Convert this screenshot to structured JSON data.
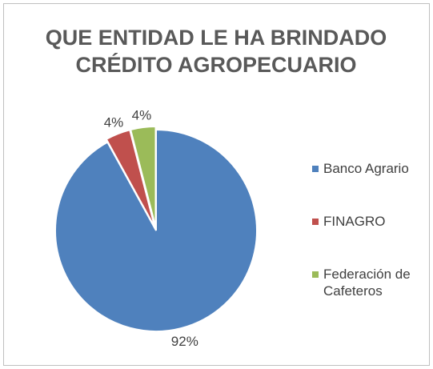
{
  "chart_data": {
    "type": "pie",
    "title": "QUE ENTIDAD LE HA BRINDADO CRÉDITO AGROPECUARIO",
    "categories": [
      "Banco Agrario",
      "FINAGRO",
      "Federación de Cafeteros"
    ],
    "values": [
      92,
      4,
      4
    ],
    "value_labels": [
      "92%",
      "4%",
      "4%"
    ],
    "colors": [
      "#4f81bd",
      "#c0504d",
      "#9bbb59"
    ],
    "legend": "right"
  }
}
